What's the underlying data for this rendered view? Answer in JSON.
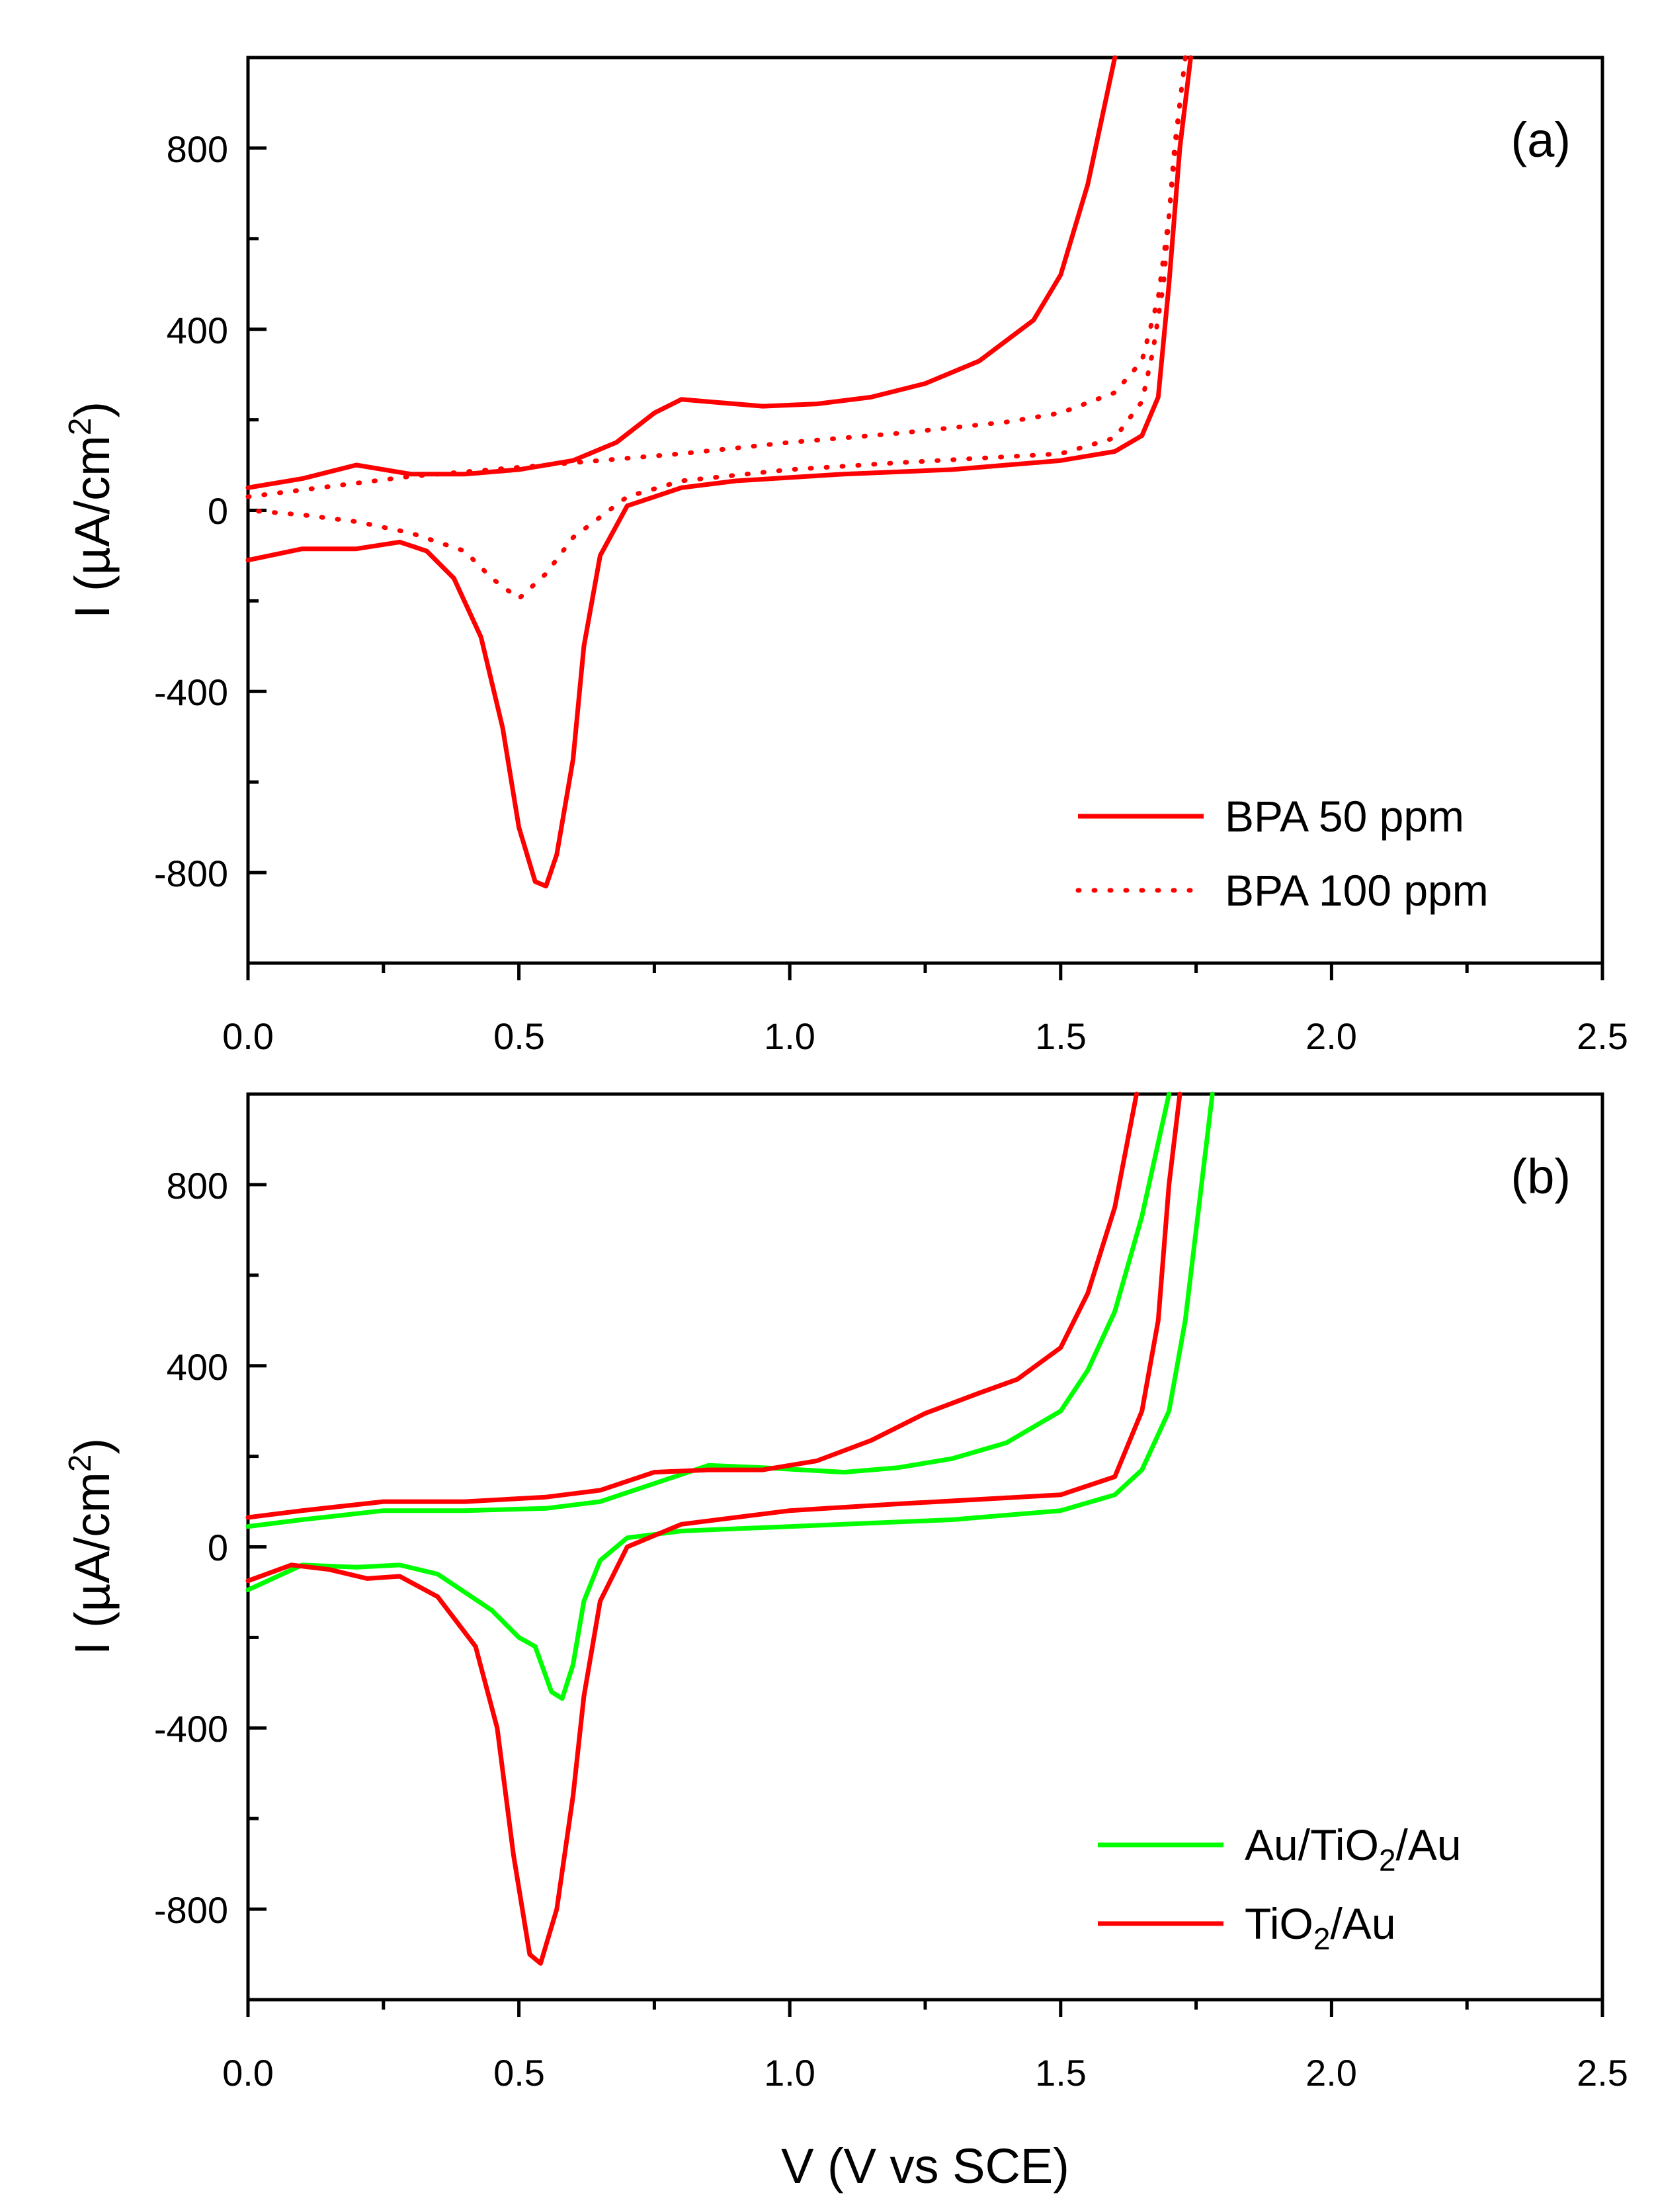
{
  "chart_data": [
    {
      "type": "line",
      "panel_label": "(a)",
      "xlabel": "",
      "ylabel": "I (µA/cm²)",
      "ylabel_parts": [
        "I (µA/cm",
        "2",
        ")"
      ],
      "xlim": [
        0.0,
        2.5
      ],
      "ylim": [
        -1000,
        1000
      ],
      "x_ticks": [
        "0.0",
        "0.5",
        "1.0",
        "1.5",
        "2.0",
        "2.5"
      ],
      "y_ticks": [
        "800",
        "400",
        "0",
        "-400",
        "-800"
      ],
      "legend_position": "bottom-right",
      "series": [
        {
          "name": "BPA 50 ppm",
          "legend_label": "BPA 50 ppm",
          "color": "#ff0000",
          "style": "solid",
          "points": [
            [
              0.0,
              50
            ],
            [
              0.1,
              70
            ],
            [
              0.2,
              100
            ],
            [
              0.3,
              80
            ],
            [
              0.4,
              80
            ],
            [
              0.5,
              90
            ],
            [
              0.6,
              110
            ],
            [
              0.68,
              150
            ],
            [
              0.75,
              215
            ],
            [
              0.8,
              245
            ],
            [
              0.85,
              240
            ],
            [
              0.95,
              230
            ],
            [
              1.05,
              235
            ],
            [
              1.15,
              250
            ],
            [
              1.25,
              280
            ],
            [
              1.35,
              330
            ],
            [
              1.45,
              420
            ],
            [
              1.5,
              520
            ],
            [
              1.55,
              720
            ],
            [
              1.6,
              1000
            ],
            null,
            [
              1.74,
              1000
            ],
            [
              1.72,
              800
            ],
            [
              1.7,
              500
            ],
            [
              1.68,
              250
            ],
            [
              1.65,
              165
            ],
            [
              1.6,
              130
            ],
            [
              1.5,
              110
            ],
            [
              1.3,
              90
            ],
            [
              1.1,
              80
            ],
            [
              0.9,
              65
            ],
            [
              0.8,
              50
            ],
            [
              0.7,
              10
            ],
            [
              0.65,
              -100
            ],
            [
              0.62,
              -300
            ],
            [
              0.6,
              -550
            ],
            [
              0.57,
              -760
            ],
            [
              0.55,
              -830
            ],
            [
              0.53,
              -820
            ],
            [
              0.5,
              -700
            ],
            [
              0.47,
              -480
            ],
            [
              0.43,
              -280
            ],
            [
              0.38,
              -150
            ],
            [
              0.33,
              -90
            ],
            [
              0.28,
              -70
            ],
            [
              0.2,
              -85
            ],
            [
              0.1,
              -85
            ],
            [
              0.0,
              -110
            ]
          ]
        },
        {
          "name": "BPA 100 ppm",
          "legend_label": "BPA 100 ppm",
          "color": "#ff0000",
          "style": "dotted",
          "points": [
            [
              0.0,
              30
            ],
            [
              0.1,
              45
            ],
            [
              0.2,
              60
            ],
            [
              0.3,
              75
            ],
            [
              0.45,
              90
            ],
            [
              0.6,
              105
            ],
            [
              0.8,
              125
            ],
            [
              1.0,
              150
            ],
            [
              1.2,
              170
            ],
            [
              1.4,
              195
            ],
            [
              1.5,
              215
            ],
            [
              1.6,
              260
            ],
            [
              1.65,
              330
            ],
            [
              1.68,
              470
            ],
            [
              1.7,
              650
            ],
            [
              1.72,
              900
            ],
            [
              1.73,
              1000
            ],
            null,
            [
              1.73,
              1000
            ],
            [
              1.71,
              800
            ],
            [
              1.69,
              500
            ],
            [
              1.67,
              350
            ],
            [
              1.65,
              240
            ],
            [
              1.6,
              160
            ],
            [
              1.5,
              125
            ],
            [
              1.2,
              105
            ],
            [
              1.0,
              90
            ],
            [
              0.8,
              65
            ],
            [
              0.7,
              30
            ],
            [
              0.6,
              -60
            ],
            [
              0.55,
              -140
            ],
            [
              0.5,
              -195
            ],
            [
              0.45,
              -150
            ],
            [
              0.4,
              -90
            ],
            [
              0.3,
              -50
            ],
            [
              0.2,
              -25
            ],
            [
              0.1,
              -10
            ],
            [
              0.0,
              0
            ]
          ]
        }
      ]
    },
    {
      "type": "line",
      "panel_label": "(b)",
      "xlabel": "V (V vs SCE)",
      "ylabel": "I (µA/cm²)",
      "ylabel_parts": [
        "I (µA/cm",
        "2",
        ")"
      ],
      "xlim": [
        0.0,
        2.5
      ],
      "ylim": [
        -1000,
        1000
      ],
      "x_ticks": [
        "0.0",
        "0.5",
        "1.0",
        "1.5",
        "2.0",
        "2.5"
      ],
      "y_ticks": [
        "800",
        "400",
        "0",
        "-400",
        "-800"
      ],
      "legend_position": "bottom-right",
      "series": [
        {
          "name": "Au/TiO2/Au",
          "legend_parts": [
            "Au/TiO",
            "2",
            "/Au"
          ],
          "color": "#00ff00",
          "style": "solid",
          "points": [
            [
              0.0,
              45
            ],
            [
              0.1,
              60
            ],
            [
              0.25,
              80
            ],
            [
              0.4,
              80
            ],
            [
              0.55,
              85
            ],
            [
              0.65,
              100
            ],
            [
              0.75,
              140
            ],
            [
              0.85,
              180
            ],
            [
              0.95,
              175
            ],
            [
              1.1,
              165
            ],
            [
              1.2,
              175
            ],
            [
              1.3,
              195
            ],
            [
              1.4,
              230
            ],
            [
              1.5,
              300
            ],
            [
              1.55,
              390
            ],
            [
              1.6,
              520
            ],
            [
              1.65,
              730
            ],
            [
              1.7,
              1000
            ],
            null,
            [
              1.78,
              1000
            ],
            [
              1.76,
              800
            ],
            [
              1.73,
              500
            ],
            [
              1.7,
              300
            ],
            [
              1.65,
              170
            ],
            [
              1.6,
              115
            ],
            [
              1.5,
              80
            ],
            [
              1.3,
              60
            ],
            [
              1.0,
              45
            ],
            [
              0.8,
              35
            ],
            [
              0.7,
              20
            ],
            [
              0.65,
              -30
            ],
            [
              0.62,
              -120
            ],
            [
              0.6,
              -260
            ],
            [
              0.58,
              -335
            ],
            [
              0.56,
              -320
            ],
            [
              0.53,
              -220
            ],
            [
              0.5,
              -200
            ],
            [
              0.45,
              -140
            ],
            [
              0.35,
              -60
            ],
            [
              0.28,
              -40
            ],
            [
              0.2,
              -45
            ],
            [
              0.1,
              -40
            ],
            [
              0.0,
              -95
            ]
          ]
        },
        {
          "name": "TiO2/Au",
          "legend_parts": [
            "TiO",
            "2",
            "/Au"
          ],
          "color": "#ff0000",
          "style": "solid",
          "points": [
            [
              0.0,
              65
            ],
            [
              0.1,
              80
            ],
            [
              0.25,
              100
            ],
            [
              0.4,
              100
            ],
            [
              0.55,
              110
            ],
            [
              0.65,
              125
            ],
            [
              0.75,
              165
            ],
            [
              0.85,
              170
            ],
            [
              0.95,
              170
            ],
            [
              1.05,
              190
            ],
            [
              1.15,
              235
            ],
            [
              1.25,
              295
            ],
            [
              1.35,
              340
            ],
            [
              1.42,
              370
            ],
            [
              1.5,
              440
            ],
            [
              1.55,
              560
            ],
            [
              1.6,
              750
            ],
            [
              1.64,
              1000
            ],
            null,
            [
              1.72,
              1000
            ],
            [
              1.7,
              800
            ],
            [
              1.68,
              500
            ],
            [
              1.65,
              300
            ],
            [
              1.6,
              155
            ],
            [
              1.5,
              115
            ],
            [
              1.2,
              95
            ],
            [
              1.0,
              80
            ],
            [
              0.8,
              50
            ],
            [
              0.7,
              0
            ],
            [
              0.65,
              -120
            ],
            [
              0.62,
              -330
            ],
            [
              0.6,
              -550
            ],
            [
              0.57,
              -800
            ],
            [
              0.54,
              -920
            ],
            [
              0.52,
              -900
            ],
            [
              0.49,
              -680
            ],
            [
              0.46,
              -400
            ],
            [
              0.42,
              -220
            ],
            [
              0.35,
              -110
            ],
            [
              0.28,
              -65
            ],
            [
              0.22,
              -70
            ],
            [
              0.15,
              -50
            ],
            [
              0.08,
              -40
            ],
            [
              0.0,
              -75
            ]
          ]
        }
      ]
    }
  ]
}
